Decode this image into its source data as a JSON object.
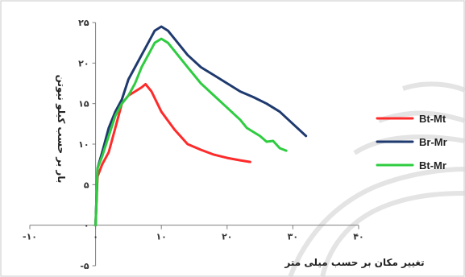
{
  "chart_data": {
    "type": "line",
    "title": "",
    "xlabel": "تغییر مکان بر حسب میلی متر",
    "ylabel": "بار بر حسب کیلو نیوتن",
    "xlim": [
      -10,
      40
    ],
    "ylim": [
      -5,
      25
    ],
    "x_ticks": [
      -10,
      0,
      10,
      20,
      30,
      40
    ],
    "x_tick_labels": [
      "-۱۰",
      "۰",
      "۱۰",
      "۲۰",
      "۳۰",
      "۴۰"
    ],
    "y_ticks": [
      -5,
      0,
      5,
      10,
      15,
      20,
      25
    ],
    "y_tick_labels": [
      "-۵",
      "۰",
      "۵",
      "۱۰",
      "۱۵",
      "۲۰",
      "۲۵"
    ],
    "grid": false,
    "legend_position": "right",
    "series": [
      {
        "name": "Bt-Mt",
        "color": "#ff2a2a",
        "points": [
          [
            0,
            0
          ],
          [
            0.3,
            6
          ],
          [
            1,
            7.5
          ],
          [
            2,
            9
          ],
          [
            3,
            12
          ],
          [
            4,
            15
          ],
          [
            5,
            16
          ],
          [
            6,
            16.5
          ],
          [
            7,
            17
          ],
          [
            7.6,
            17.4
          ],
          [
            8.5,
            16.5
          ],
          [
            10,
            14
          ],
          [
            12,
            11.8
          ],
          [
            14,
            10
          ],
          [
            16,
            9.3
          ],
          [
            18,
            8.7
          ],
          [
            20,
            8.3
          ],
          [
            22,
            8
          ],
          [
            23.5,
            7.8
          ]
        ]
      },
      {
        "name": "Br-Mr",
        "color": "#1f3a6e",
        "points": [
          [
            0,
            0
          ],
          [
            0.3,
            7
          ],
          [
            1,
            9
          ],
          [
            2,
            12
          ],
          [
            3,
            14
          ],
          [
            4,
            15.5
          ],
          [
            5,
            18
          ],
          [
            6,
            19.5
          ],
          [
            7,
            21
          ],
          [
            8,
            22.5
          ],
          [
            9,
            24
          ],
          [
            10,
            24.5
          ],
          [
            11,
            24
          ],
          [
            12,
            23
          ],
          [
            14,
            21
          ],
          [
            16,
            19.5
          ],
          [
            18,
            18.5
          ],
          [
            20,
            17.5
          ],
          [
            22,
            16.5
          ],
          [
            24,
            15.8
          ],
          [
            26,
            15
          ],
          [
            28,
            14
          ],
          [
            30,
            12.5
          ],
          [
            32,
            11
          ]
        ]
      },
      {
        "name": "Bt-Mr",
        "color": "#2ecc40",
        "points": [
          [
            0,
            0
          ],
          [
            0.3,
            7
          ],
          [
            1,
            8.5
          ],
          [
            2,
            11
          ],
          [
            3,
            13.5
          ],
          [
            4,
            15
          ],
          [
            5,
            16
          ],
          [
            6,
            17.5
          ],
          [
            7,
            19.5
          ],
          [
            8,
            21
          ],
          [
            9,
            22.5
          ],
          [
            10,
            23
          ],
          [
            11,
            22.5
          ],
          [
            12,
            21.5
          ],
          [
            14,
            19.5
          ],
          [
            16,
            17.5
          ],
          [
            18,
            16
          ],
          [
            20,
            14.5
          ],
          [
            22,
            13
          ],
          [
            23,
            12
          ],
          [
            24,
            11.5
          ],
          [
            25,
            11
          ],
          [
            26,
            10.3
          ],
          [
            27,
            10.4
          ],
          [
            28,
            9.5
          ],
          [
            29,
            9.2
          ]
        ]
      }
    ]
  }
}
